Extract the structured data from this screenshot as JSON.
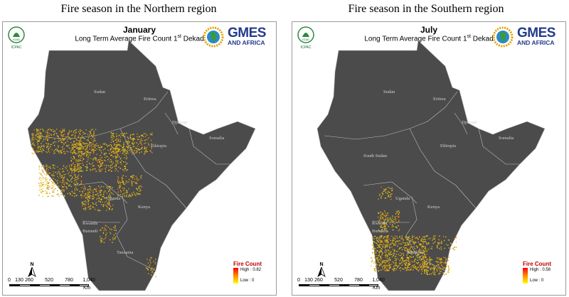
{
  "headings": {
    "left": "Fire season in the Northern region",
    "right": "Fire season in the Southern region"
  },
  "maps": [
    {
      "month": "January",
      "subtitle": "Long Term Average Fire Count 1",
      "subtitle_sup": "st",
      "subtitle_end": " Dekad",
      "legend": {
        "title": "Fire Count",
        "high": "High : 0.82",
        "low": "Low : 0"
      },
      "country_labels": [
        "Sudan",
        "Eritrea",
        "Djibouti",
        "Ethiopia",
        "Somalia",
        "Uganda",
        "Kenya",
        "Rwanda",
        "Burundi",
        "Tanzania"
      ],
      "fire_region": "northern"
    },
    {
      "month": "July",
      "subtitle": "Long Term Average Fire Count 1",
      "subtitle_sup": "st",
      "subtitle_end": " Dekad",
      "legend": {
        "title": "Fire Count",
        "high": "High : 0.58",
        "low": "Low : 0"
      },
      "country_labels": [
        "Sudan",
        "Eritrea",
        "Djibouti",
        "Ethiopia",
        "Somalia",
        "South Sudan",
        "Uganda",
        "Kenya",
        "Rwanda",
        "Burundi",
        "Tanzania"
      ],
      "fire_region": "southern"
    }
  ],
  "logos": {
    "igad_caption": "ICPAC",
    "igad_mark": "IGAD",
    "gmes_title": "GMES",
    "gmes_subtitle": "AND AFRICA"
  },
  "scale": {
    "ticks": [
      "0",
      "130",
      "260",
      "520",
      "780",
      "1,040"
    ],
    "unit": "Km"
  },
  "north_label": "N",
  "colors": {
    "land": "#4b4b4b",
    "border": "#bdbdbd",
    "fire_low": "#e0b81c",
    "fire_high": "#ff3000",
    "gmes_blue": "#243a8c"
  }
}
